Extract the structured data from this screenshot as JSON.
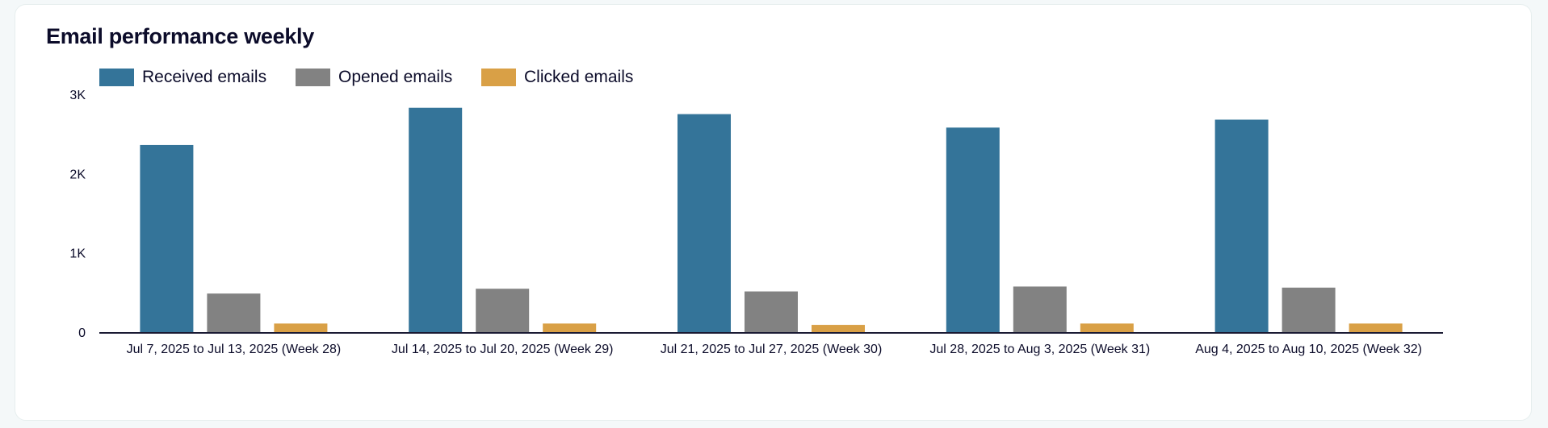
{
  "chart_data": {
    "type": "bar",
    "title": "Email performance weekly",
    "xlabel": "",
    "ylabel": "",
    "ylim": [
      0,
      3000
    ],
    "yticks": [
      {
        "value": 0,
        "label": "0"
      },
      {
        "value": 1000,
        "label": "1K"
      },
      {
        "value": 2000,
        "label": "2K"
      },
      {
        "value": 3000,
        "label": "3K"
      }
    ],
    "grid": false,
    "legend_position": "top-left",
    "categories": [
      "Jul 7, 2025 to Jul 13, 2025 (Week 28)",
      "Jul 14, 2025 to Jul 20, 2025 (Week 29)",
      "Jul 21, 2025 to Jul 27, 2025 (Week 30)",
      "Jul 28, 2025 to Aug 3, 2025 (Week 31)",
      "Aug 4, 2025 to Aug 10, 2025 (Week 32)"
    ],
    "series": [
      {
        "name": "Received emails",
        "color": "#347499",
        "values": [
          2360,
          2830,
          2750,
          2580,
          2680
        ]
      },
      {
        "name": "Opened emails",
        "color": "#828282",
        "values": [
          486,
          547,
          513,
          575,
          561
        ]
      },
      {
        "name": "Clicked emails",
        "color": "#d9a046",
        "values": [
          108,
          108,
          91,
          108,
          108
        ]
      }
    ]
  }
}
